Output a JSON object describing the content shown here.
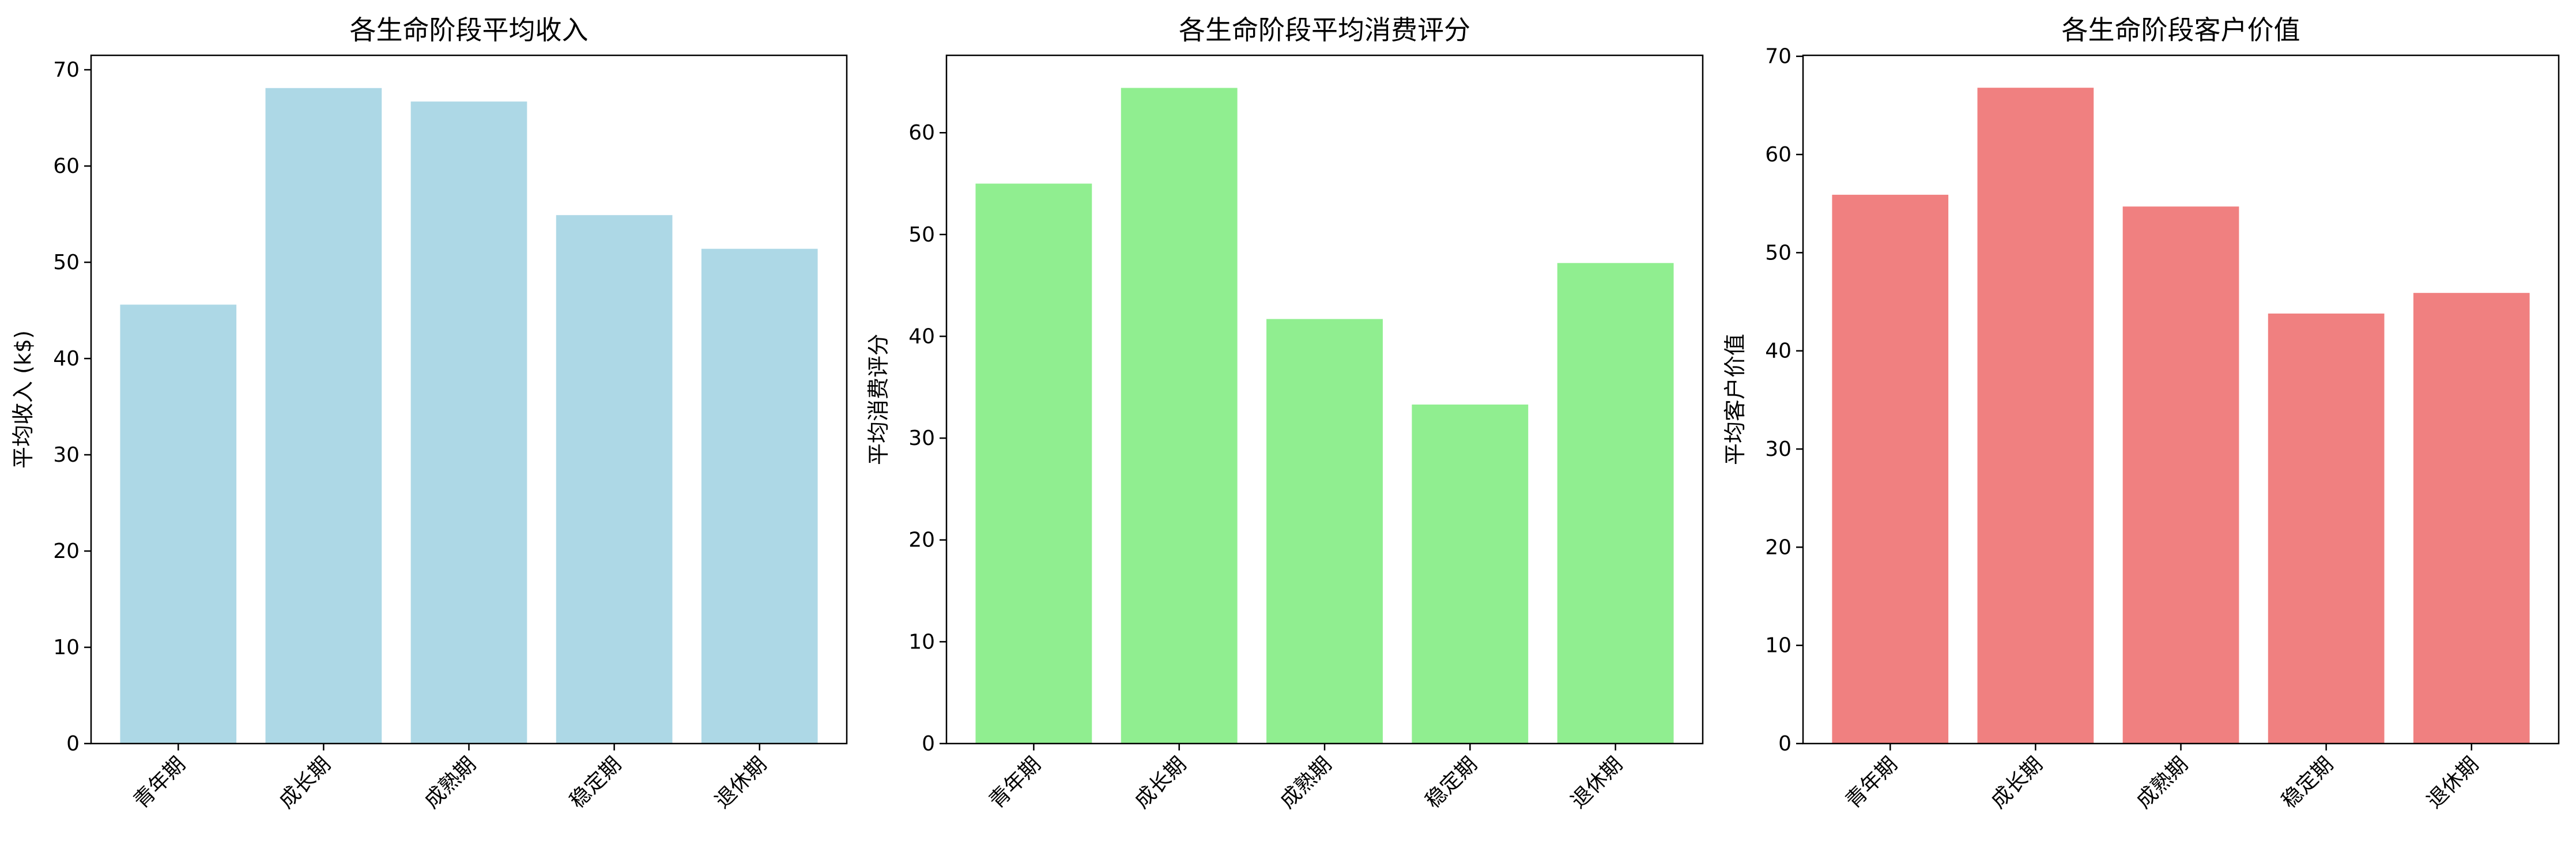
{
  "chart_data": [
    {
      "type": "bar",
      "title": "各生命阶段平均收入",
      "xlabel": "",
      "ylabel": "平均收入 (k$)",
      "categories": [
        "青年期",
        "成长期",
        "成熟期",
        "稳定期",
        "退休期"
      ],
      "values": [
        45.6,
        68.1,
        66.7,
        54.9,
        51.4
      ],
      "ylim": [
        0,
        71.5
      ],
      "yticks": [
        0,
        10,
        20,
        30,
        40,
        50,
        60,
        70
      ],
      "color": "#add8e6",
      "grid": false
    },
    {
      "type": "bar",
      "title": "各生命阶段平均消费评分",
      "xlabel": "",
      "ylabel": "平均消费评分",
      "categories": [
        "青年期",
        "成长期",
        "成熟期",
        "稳定期",
        "退休期"
      ],
      "values": [
        55.0,
        64.4,
        41.7,
        33.3,
        47.2
      ],
      "ylim": [
        0,
        67.6
      ],
      "yticks": [
        0,
        10,
        20,
        30,
        40,
        50,
        60
      ],
      "color": "#90ee90",
      "grid": false
    },
    {
      "type": "bar",
      "title": "各生命阶段客户价值",
      "xlabel": "",
      "ylabel": "平均客户价值",
      "categories": [
        "青年期",
        "成长期",
        "成熟期",
        "稳定期",
        "退休期"
      ],
      "values": [
        55.9,
        66.8,
        54.7,
        43.8,
        45.9
      ],
      "ylim": [
        0,
        70.1
      ],
      "yticks": [
        0,
        10,
        20,
        30,
        40,
        50,
        60,
        70
      ],
      "color": "#f08080",
      "grid": false
    }
  ]
}
